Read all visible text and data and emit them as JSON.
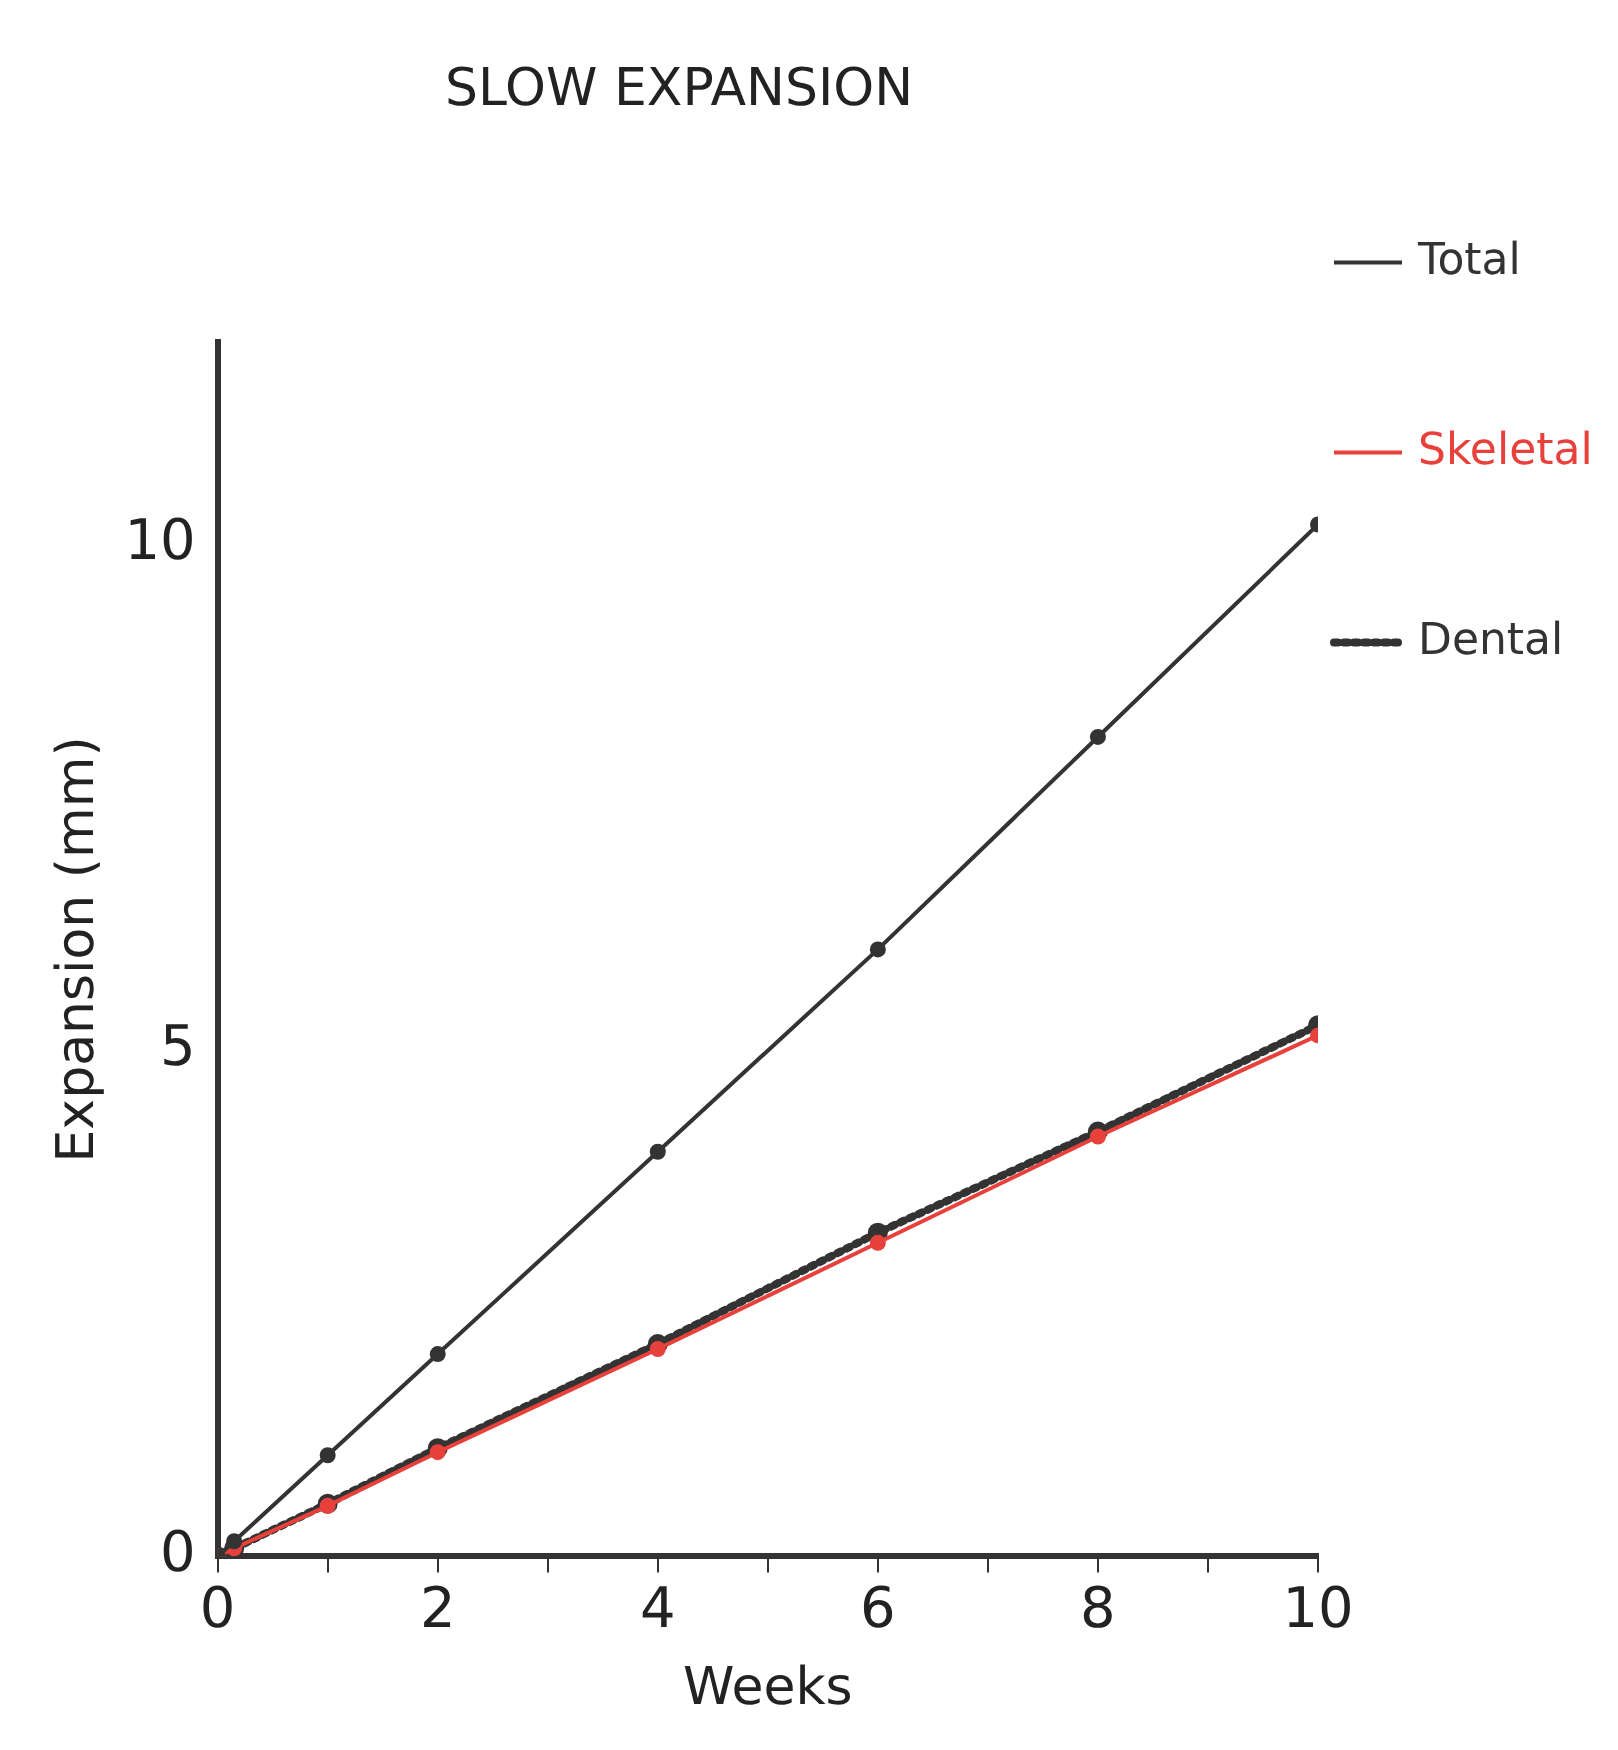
{
  "chart_data": {
    "type": "line",
    "title": "SLOW EXPANSION",
    "xlabel": "Weeks",
    "ylabel": "Expansion (mm)",
    "xlim": [
      0,
      10
    ],
    "ylim": [
      0,
      12
    ],
    "xticks": [
      0,
      {
        "value": 1,
        "label": null
      },
      2,
      {
        "value": 3,
        "label": null
      },
      4,
      {
        "value": 5,
        "label": null
      },
      6,
      {
        "value": 7,
        "label": null
      },
      8,
      {
        "value": 9,
        "label": null
      },
      10
    ],
    "yticks": [
      0,
      5,
      10
    ],
    "x": [
      0,
      0.15,
      1,
      2,
      4,
      6,
      8,
      10
    ],
    "series": [
      {
        "name": "Total",
        "color": "#333333",
        "values": [
          0,
          0.15,
          1,
          2,
          4,
          6,
          8.1,
          10.2
        ],
        "line_style": "solid"
      },
      {
        "name": "Skeletal",
        "color": "#e8413c",
        "values": [
          0,
          0.08,
          0.5,
          1.03,
          2.05,
          3.1,
          4.15,
          5.15
        ],
        "line_style": "solid"
      },
      {
        "name": "Dental",
        "color": "#333333",
        "values": [
          0,
          0.08,
          0.52,
          1.07,
          2.1,
          3.2,
          4.2,
          5.25
        ],
        "line_style": "dotted"
      }
    ],
    "marker": "circle",
    "grid": false,
    "legend": "right"
  }
}
